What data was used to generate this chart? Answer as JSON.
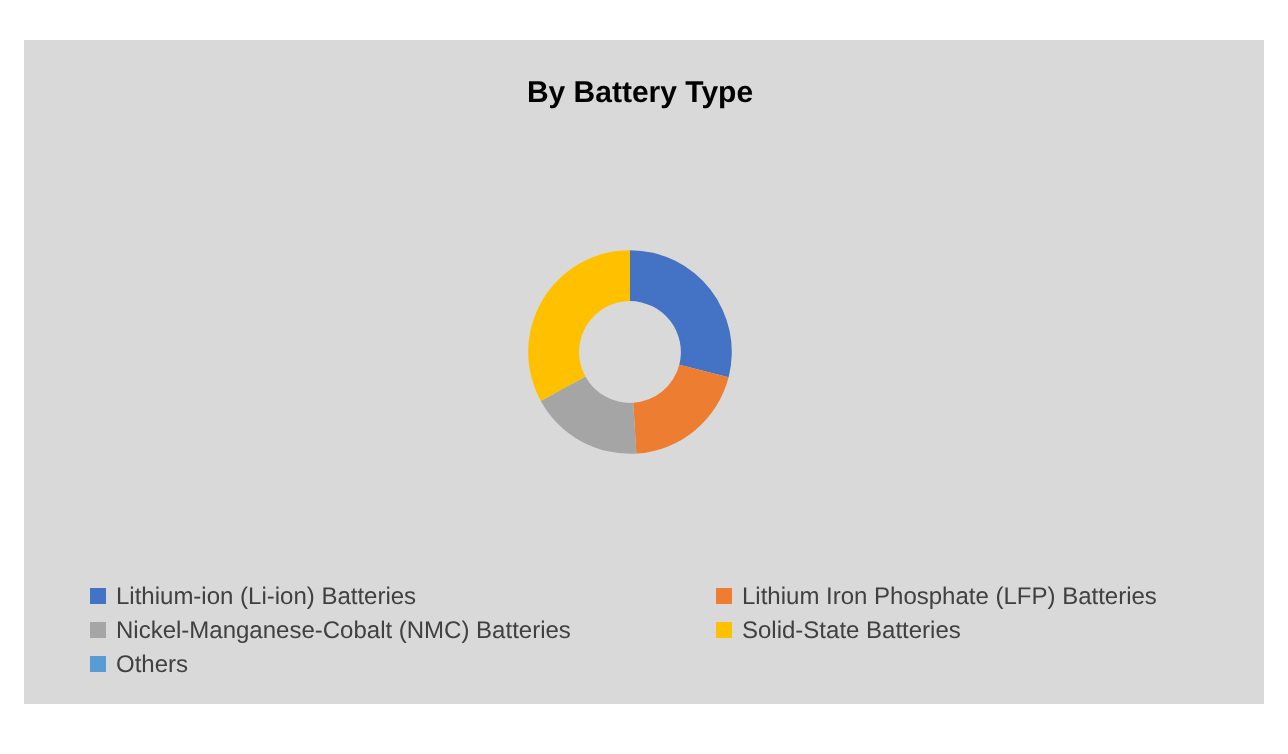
{
  "chart_data": {
    "type": "donut",
    "title": "By Battery Type",
    "categories": [
      "Lithium-ion (Li-ion) Batteries",
      "Lithium Iron Phosphate (LFP) Batteries",
      "Nickel-Manganese-Cobalt (NMC) Batteries",
      "Solid-State Batteries",
      "Others"
    ],
    "values": [
      29,
      20,
      18,
      33,
      0
    ],
    "colors": [
      "#4472c4",
      "#ed7d31",
      "#a5a5a5",
      "#ffc000",
      "#5b9bd5"
    ],
    "legend": "bottom"
  }
}
